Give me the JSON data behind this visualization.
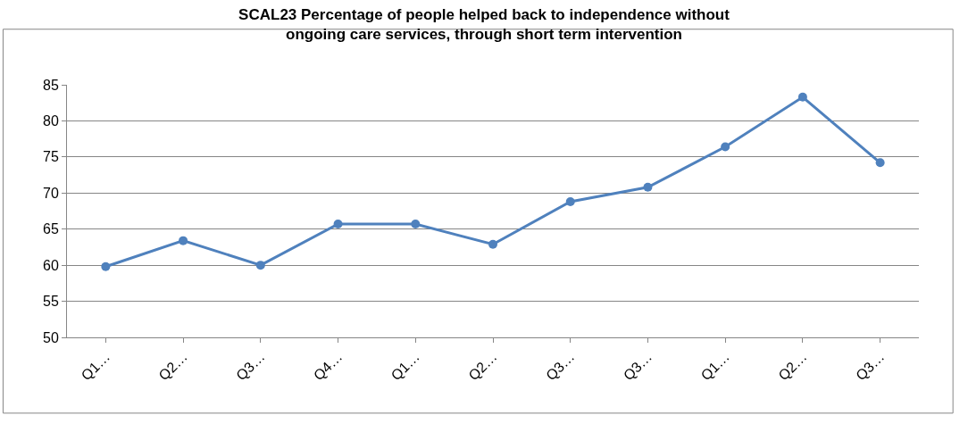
{
  "chart_data": {
    "type": "line",
    "title": "SCAL23 Percentage of people helped back to independence without\nongoing care services, through short term intervention",
    "categories": [
      "Q1…",
      "Q2…",
      "Q3…",
      "Q4…",
      "Q1…",
      "Q2…",
      "Q3…",
      "Q3…",
      "Q1…",
      "Q2…",
      "Q3…"
    ],
    "series": [
      {
        "color": "#4f81bd",
        "values": [
          59.8,
          63.4,
          60.0,
          65.7,
          65.7,
          62.9,
          68.8,
          70.8,
          76.4,
          83.3,
          74.2
        ]
      }
    ],
    "ylim": [
      50,
      85
    ],
    "yticks": [
      50,
      55,
      60,
      65,
      70,
      75,
      80,
      85
    ],
    "grid": "y",
    "marker": "circle",
    "line_style": "solid",
    "legend": false
  }
}
